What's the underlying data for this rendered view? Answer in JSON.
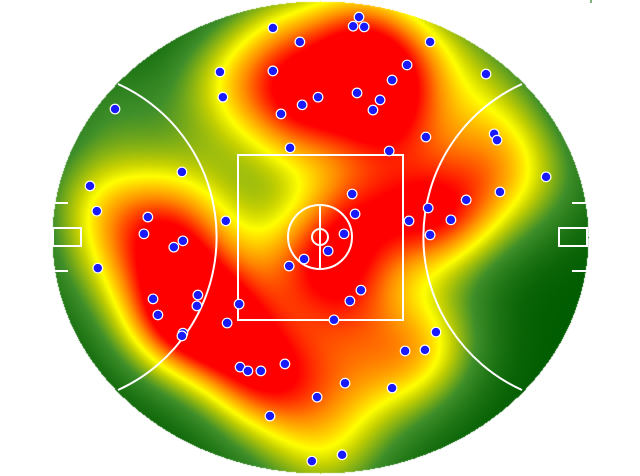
{
  "chart_data": {
    "type": "heatmap",
    "subtype": "scatter-density-on-oval-field",
    "x_unit": "m",
    "y_unit": "m",
    "xlim": [
      -82.5,
      82.5
    ],
    "ylim": [
      -67.5,
      67.5
    ],
    "grid": false,
    "legend": "none",
    "colormap": [
      "#005c00",
      "#3f8f2a",
      "#c8d200",
      "#ffff00",
      "#ff8c00",
      "#ff0000"
    ],
    "point_color": "#1a1aff",
    "point_edge_color": "#ffffff",
    "line_color": "#ffffff",
    "points": [
      [
        12.0,
        62.9
      ],
      [
        10.2,
        60.3
      ],
      [
        13.6,
        60.1
      ],
      [
        -14.5,
        59.8
      ],
      [
        -6.2,
        55.8
      ],
      [
        33.9,
        55.8
      ],
      [
        26.8,
        49.2
      ],
      [
        51.1,
        46.6
      ],
      [
        -30.8,
        47.2
      ],
      [
        -14.5,
        47.5
      ],
      [
        22.2,
        44.9
      ],
      [
        11.4,
        41.2
      ],
      [
        -0.6,
        40.0
      ],
      [
        -5.5,
        37.8
      ],
      [
        18.5,
        39.2
      ],
      [
        -29.9,
        40.0
      ],
      [
        16.3,
        36.3
      ],
      [
        -12.0,
        35.2
      ],
      [
        -63.1,
        36.6
      ],
      [
        32.6,
        28.6
      ],
      [
        53.6,
        29.5
      ],
      [
        54.5,
        27.7
      ],
      [
        -9.2,
        25.5
      ],
      [
        21.3,
        24.6
      ],
      [
        -42.5,
        18.6
      ],
      [
        69.6,
        17.2
      ],
      [
        -70.8,
        14.6
      ],
      [
        55.4,
        12.9
      ],
      [
        9.9,
        12.3
      ],
      [
        45.0,
        10.6
      ],
      [
        -68.7,
        7.4
      ],
      [
        33.3,
        8.3
      ],
      [
        10.8,
        6.6
      ],
      [
        -53.0,
        5.7
      ],
      [
        27.4,
        4.6
      ],
      [
        40.3,
        4.9
      ],
      [
        -29.0,
        4.6
      ],
      [
        -54.2,
        0.9
      ],
      [
        7.4,
        0.9
      ],
      [
        33.9,
        0.6
      ],
      [
        -42.2,
        -1.1
      ],
      [
        -45.0,
        -2.9
      ],
      [
        2.5,
        -4.0
      ],
      [
        -4.9,
        -6.3
      ],
      [
        -9.5,
        -8.3
      ],
      [
        -68.4,
        -8.9
      ],
      [
        12.6,
        -15.2
      ],
      [
        -37.6,
        -16.6
      ],
      [
        -51.4,
        -17.7
      ],
      [
        9.2,
        -18.3
      ],
      [
        -24.9,
        -19.2
      ],
      [
        -37.9,
        -19.7
      ],
      [
        -49.9,
        -22.3
      ],
      [
        4.3,
        -23.7
      ],
      [
        -28.6,
        -24.6
      ],
      [
        35.7,
        -27.2
      ],
      [
        -42.2,
        -27.5
      ],
      [
        -42.5,
        -28.3
      ],
      [
        26.2,
        -32.6
      ],
      [
        32.3,
        -32.3
      ],
      [
        -10.8,
        -36.3
      ],
      [
        -24.6,
        -37.2
      ],
      [
        -22.2,
        -38.3
      ],
      [
        -18.2,
        -38.3
      ],
      [
        7.7,
        -41.8
      ],
      [
        22.2,
        -43.2
      ],
      [
        -0.9,
        -45.8
      ],
      [
        -15.4,
        -51.2
      ],
      [
        6.8,
        -62.3
      ],
      [
        -2.5,
        -64.1
      ]
    ]
  }
}
